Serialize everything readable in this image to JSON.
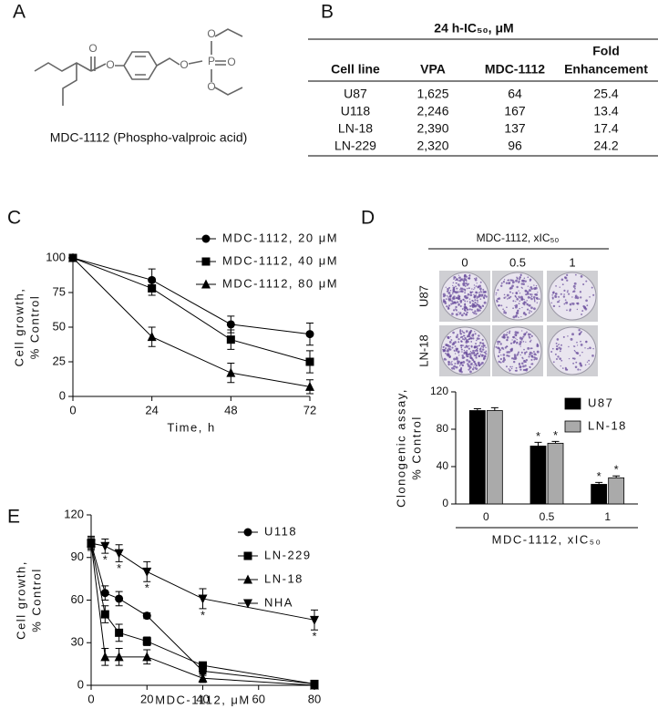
{
  "panel_labels": [
    "A",
    "B",
    "C",
    "D",
    "E"
  ],
  "structure": {
    "atoms": [
      "O",
      "O",
      "O",
      "P",
      "O",
      "O",
      "O"
    ],
    "caption": "MDC-1112 (Phospho-valproic acid)"
  },
  "table": {
    "title": "24 h-IC₅₀, μM",
    "header": [
      [
        "Cell line"
      ],
      [
        "VPA"
      ],
      [
        "MDC-1112"
      ],
      [
        "Fold",
        "Enhancement"
      ]
    ],
    "rows": [
      [
        "U87",
        "1,625",
        "64",
        "25.4"
      ],
      [
        "U118",
        "2,246",
        "167",
        "13.4"
      ],
      [
        "LN-18",
        "2,390",
        "137",
        "17.4"
      ],
      [
        "LN-229",
        "2,320",
        "96",
        "24.2"
      ]
    ]
  },
  "colony_assay": {
    "title": "MDC-1112, xIC₅₀",
    "doses": [
      "0",
      "0.5",
      "1"
    ],
    "cell_lines": [
      "U87",
      "LN-18"
    ]
  },
  "chart_data": [
    {
      "type": "line",
      "xlabel": "Time, h",
      "ylabel": [
        "Cell growth,",
        "% Control"
      ],
      "x": [
        0,
        24,
        48,
        72
      ],
      "xlim": [
        0,
        72
      ],
      "xticks": [
        0,
        24,
        48,
        72
      ],
      "ylim": [
        0,
        100
      ],
      "yticks": [
        0,
        25,
        50,
        75,
        100
      ],
      "series": [
        {
          "name": "MDC-1112, 20 μM",
          "marker": "circle",
          "color": "#000000",
          "values": [
            100,
            84,
            52,
            45
          ],
          "errors": [
            0,
            8,
            6,
            8
          ]
        },
        {
          "name": "MDC-1112, 40 μM",
          "marker": "square",
          "color": "#000000",
          "values": [
            100,
            78,
            41,
            25
          ],
          "errors": [
            0,
            5,
            7,
            8
          ]
        },
        {
          "name": "MDC-1112, 80 μM",
          "marker": "triangle-up",
          "color": "#000000",
          "values": [
            100,
            43,
            17,
            7
          ],
          "errors": [
            0,
            7,
            7,
            5
          ]
        }
      ]
    },
    {
      "type": "bar",
      "xlabel": "MDC-1112, xIC₅₀",
      "ylabel": [
        "Clonogenic assay,",
        "% Control"
      ],
      "annotation": "*",
      "categories": [
        "0",
        "0.5",
        "1"
      ],
      "ylim": [
        0,
        120
      ],
      "yticks": [
        0,
        40,
        80,
        120
      ],
      "series": [
        {
          "name": "U87",
          "color": "#000000",
          "values": [
            100,
            62,
            21
          ],
          "errors": [
            2,
            4,
            2
          ],
          "significant": [
            false,
            true,
            true
          ]
        },
        {
          "name": "LN-18",
          "color": "#aaaaaa",
          "values": [
            100,
            65,
            28
          ],
          "errors": [
            3,
            2,
            2
          ],
          "significant": [
            false,
            true,
            true
          ]
        }
      ]
    },
    {
      "type": "line",
      "xlabel": "MDC-1112, μM",
      "ylabel": [
        "Cell growth,",
        "% Control"
      ],
      "annotation": "*",
      "x": [
        0,
        5,
        10,
        20,
        40,
        80
      ],
      "xlim": [
        0,
        80
      ],
      "xticks": [
        0,
        20,
        40,
        60,
        80
      ],
      "ylim": [
        0,
        120
      ],
      "yticks": [
        0,
        30,
        60,
        90,
        120
      ],
      "series": [
        {
          "name": "U118",
          "marker": "circle",
          "color": "#000000",
          "values": [
            100,
            65,
            61,
            49,
            10,
            1
          ],
          "errors": [
            5,
            5,
            5,
            2,
            3,
            1
          ]
        },
        {
          "name": "LN-229",
          "marker": "square",
          "color": "#000000",
          "values": [
            100,
            50,
            37,
            31,
            14,
            1
          ],
          "errors": [
            4,
            6,
            6,
            3,
            2,
            1
          ]
        },
        {
          "name": "LN-18",
          "marker": "triangle-up",
          "color": "#000000",
          "values": [
            100,
            20,
            20,
            20,
            5,
            0
          ],
          "errors": [
            3,
            6,
            6,
            5,
            3,
            1
          ]
        },
        {
          "name": "NHA",
          "marker": "triangle-down",
          "color": "#000000",
          "values": [
            100,
            98,
            93,
            80,
            61,
            46
          ],
          "errors": [
            4,
            5,
            6,
            7,
            7,
            7
          ],
          "significant": [
            false,
            true,
            true,
            true,
            true,
            true
          ]
        }
      ]
    }
  ]
}
